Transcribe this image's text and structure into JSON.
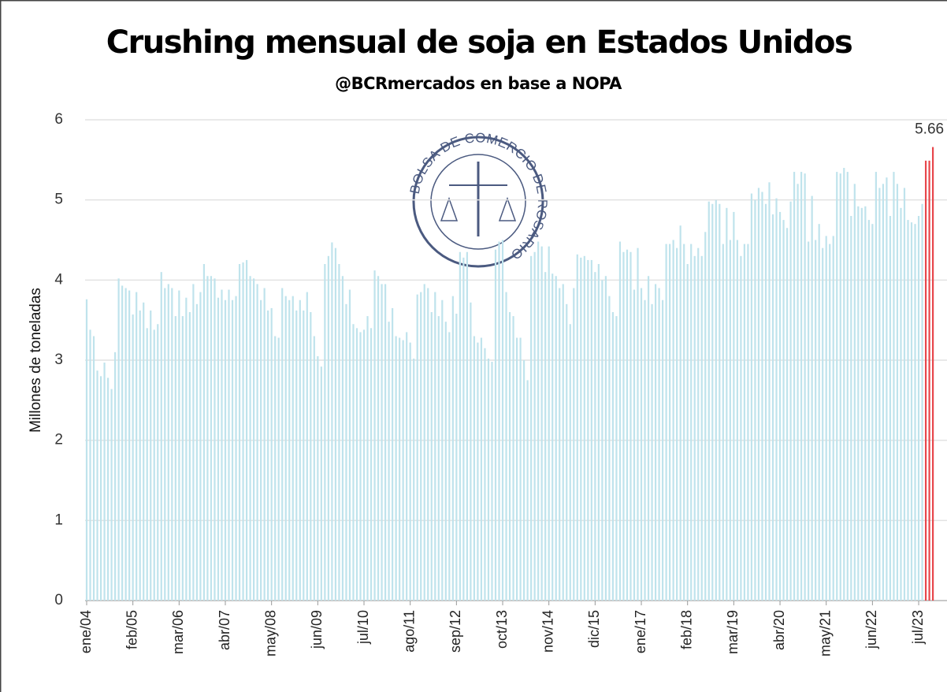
{
  "chart_data": {
    "type": "bar",
    "title": "Crushing mensual de soja en Estados Unidos",
    "subtitle": "@BCRmercados en base a NOPA",
    "y_label": "Millones de toneladas",
    "watermark": "BOLSA DE COMERCIO DE ROSARIO",
    "ylim": [
      0,
      6
    ],
    "yticks": [
      0,
      1,
      2,
      3,
      4,
      5,
      6
    ],
    "grid": true,
    "categories": [
      "ene/04",
      null,
      null,
      null,
      null,
      null,
      null,
      null,
      null,
      null,
      null,
      null,
      null,
      "feb/05",
      null,
      null,
      null,
      null,
      null,
      null,
      null,
      null,
      null,
      null,
      null,
      null,
      "mar/06",
      null,
      null,
      null,
      null,
      null,
      null,
      null,
      null,
      null,
      null,
      null,
      null,
      "abr/07",
      null,
      null,
      null,
      null,
      null,
      null,
      null,
      null,
      null,
      null,
      null,
      null,
      "may/08",
      null,
      null,
      null,
      null,
      null,
      null,
      null,
      null,
      null,
      null,
      null,
      null,
      "jun/09",
      null,
      null,
      null,
      null,
      null,
      null,
      null,
      null,
      null,
      null,
      null,
      null,
      "jul/10",
      null,
      null,
      null,
      null,
      null,
      null,
      null,
      null,
      null,
      null,
      null,
      null,
      "ago/11",
      null,
      null,
      null,
      null,
      null,
      null,
      null,
      null,
      null,
      null,
      null,
      null,
      "sep/12",
      null,
      null,
      null,
      null,
      null,
      null,
      null,
      null,
      null,
      null,
      null,
      null,
      "oct/13",
      null,
      null,
      null,
      null,
      null,
      null,
      null,
      null,
      null,
      null,
      null,
      null,
      "nov/14",
      null,
      null,
      null,
      null,
      null,
      null,
      null,
      null,
      null,
      null,
      null,
      null,
      "dic/15",
      null,
      null,
      null,
      null,
      null,
      null,
      null,
      null,
      null,
      null,
      null,
      null,
      "ene/17",
      null,
      null,
      null,
      null,
      null,
      null,
      null,
      null,
      null,
      null,
      null,
      null,
      "feb/18",
      null,
      null,
      null,
      null,
      null,
      null,
      null,
      null,
      null,
      null,
      null,
      null,
      "mar/19",
      null,
      null,
      null,
      null,
      null,
      null,
      null,
      null,
      null,
      null,
      null,
      null,
      "abr/20",
      null,
      null,
      null,
      null,
      null,
      null,
      null,
      null,
      null,
      null,
      null,
      null,
      "may/21",
      null,
      null,
      null,
      null,
      null,
      null,
      null,
      null,
      null,
      null,
      null,
      null,
      "jun/22",
      null,
      null,
      null,
      null,
      null,
      null,
      null,
      null,
      null,
      null,
      null,
      null,
      "jul/23",
      null,
      null,
      null,
      null
    ],
    "series": [
      {
        "color": "#bfe3ec",
        "values": [
          3.76,
          3.38,
          3.3,
          2.87,
          2.8,
          2.97,
          2.78,
          2.64,
          3.1,
          4.02,
          3.93,
          3.9,
          3.87,
          3.57,
          3.85,
          3.62,
          3.72,
          3.4,
          3.62,
          3.38,
          3.45,
          4.1,
          3.9,
          3.95,
          3.9,
          3.55,
          3.87,
          3.55,
          3.78,
          3.6,
          3.95,
          3.7,
          3.85,
          4.2,
          4.05,
          4.05,
          4.02,
          3.78,
          3.88,
          3.75,
          3.88,
          3.75,
          3.8,
          4.2,
          4.22,
          4.25,
          4.05,
          4.02,
          3.95,
          3.75,
          3.9,
          3.62,
          3.65,
          3.3,
          3.28,
          3.9,
          3.8,
          3.75,
          3.8,
          3.62,
          3.75,
          3.62,
          3.85,
          3.6,
          3.3,
          3.05,
          2.92,
          4.2,
          4.3,
          4.47,
          4.4,
          4.2,
          4.05,
          3.7,
          3.88,
          3.45,
          3.4,
          3.35,
          3.38,
          3.55,
          3.4,
          4.12,
          4.05,
          3.95,
          3.95,
          3.48,
          3.65,
          3.3,
          3.28,
          3.25,
          3.35,
          3.22,
          3.02,
          3.82,
          3.85,
          3.95,
          3.9,
          3.6,
          3.85,
          3.55,
          3.75,
          3.48,
          3.35,
          3.8,
          3.58,
          4.35,
          4.28,
          4.35,
          3.72,
          3.3,
          3.22,
          3.28,
          3.15,
          3.02,
          2.98,
          4.38,
          4.48,
          4.5,
          3.85,
          3.6,
          3.55,
          3.28,
          3.28,
          3.0,
          2.75,
          4.3,
          4.35,
          4.48,
          4.42,
          4.1,
          4.42,
          4.08,
          4.05,
          3.9,
          3.95,
          3.7,
          3.45,
          3.9,
          4.32,
          4.28,
          4.3,
          4.25,
          4.25,
          4.1,
          4.2,
          4.0,
          4.05,
          3.8,
          3.6,
          3.55,
          4.48,
          4.35,
          4.38,
          4.35,
          3.88,
          4.4,
          3.9,
          3.75,
          4.05,
          3.7,
          3.95,
          3.9,
          3.75,
          4.45,
          4.45,
          4.5,
          4.4,
          4.68,
          4.45,
          4.2,
          4.45,
          4.3,
          4.4,
          4.3,
          4.6,
          4.98,
          4.95,
          5.0,
          4.95,
          4.45,
          4.9,
          4.5,
          4.85,
          4.5,
          4.3,
          4.45,
          4.45,
          5.08,
          5.0,
          5.15,
          5.1,
          4.95,
          5.22,
          4.82,
          5.02,
          4.85,
          4.75,
          4.65,
          4.98,
          5.35,
          5.2,
          5.35,
          5.33,
          4.48,
          5.05,
          4.5,
          4.7,
          4.4,
          4.55,
          4.45,
          4.55,
          5.35,
          5.33,
          5.4,
          5.35,
          4.8,
          5.2,
          4.92,
          4.9,
          4.92,
          4.75,
          4.7,
          5.35,
          5.15,
          5.2,
          5.28,
          4.8,
          5.35,
          5.2,
          4.9,
          5.15,
          4.75,
          4.72,
          4.7,
          4.8,
          4.95,
          null,
          null,
          null
        ]
      },
      {
        "color": "#e8474c",
        "values": [
          null,
          null,
          null,
          null,
          null,
          null,
          null,
          null,
          null,
          null,
          null,
          null,
          null,
          null,
          null,
          null,
          null,
          null,
          null,
          null,
          null,
          null,
          null,
          null,
          null,
          null,
          null,
          null,
          null,
          null,
          null,
          null,
          null,
          null,
          null,
          null,
          null,
          null,
          null,
          null,
          null,
          null,
          null,
          null,
          null,
          null,
          null,
          null,
          null,
          null,
          null,
          null,
          null,
          null,
          null,
          null,
          null,
          null,
          null,
          null,
          null,
          null,
          null,
          null,
          null,
          null,
          null,
          null,
          null,
          null,
          null,
          null,
          null,
          null,
          null,
          null,
          null,
          null,
          null,
          null,
          null,
          null,
          null,
          null,
          null,
          null,
          null,
          null,
          null,
          null,
          null,
          null,
          null,
          null,
          null,
          null,
          null,
          null,
          null,
          null,
          null,
          null,
          null,
          null,
          null,
          null,
          null,
          null,
          null,
          null,
          null,
          null,
          null,
          null,
          null,
          null,
          null,
          null,
          null,
          null,
          null,
          null,
          null,
          null,
          null,
          null,
          null,
          null,
          null,
          null,
          null,
          null,
          null,
          null,
          null,
          null,
          null,
          null,
          null,
          null,
          null,
          null,
          null,
          null,
          null,
          null,
          null,
          null,
          null,
          null,
          null,
          null,
          null,
          null,
          null,
          null,
          null,
          null,
          null,
          null,
          null,
          null,
          null,
          null,
          null,
          null,
          null,
          null,
          null,
          null,
          null,
          null,
          null,
          null,
          null,
          null,
          null,
          null,
          null,
          null,
          null,
          null,
          null,
          null,
          null,
          null,
          null,
          null,
          null,
          null,
          null,
          null,
          null,
          null,
          null,
          null,
          null,
          null,
          null,
          null,
          null,
          null,
          null,
          null,
          null,
          null,
          null,
          null,
          null,
          null,
          null,
          null,
          null,
          null,
          null,
          null,
          null,
          null,
          null,
          null,
          null,
          null,
          null,
          null,
          null,
          null,
          null,
          null,
          null,
          null,
          null,
          null,
          null,
          null,
          null,
          null,
          5.49,
          5.49,
          5.66
        ]
      }
    ]
  }
}
